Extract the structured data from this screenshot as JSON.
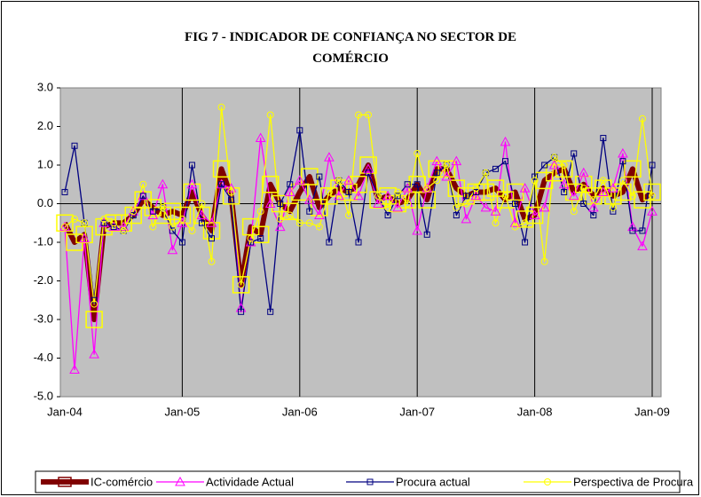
{
  "chart_data": {
    "type": "line",
    "title": "FIG 7 - INDICADOR DE CONFIANÇA NO SECTOR DE COMÉRCIO",
    "categories": [
      "Jan-04",
      null,
      null,
      null,
      null,
      null,
      null,
      null,
      null,
      null,
      null,
      null,
      "Jan-05",
      null,
      null,
      null,
      null,
      null,
      null,
      null,
      null,
      null,
      null,
      null,
      "Jan-06",
      null,
      null,
      null,
      null,
      null,
      null,
      null,
      null,
      null,
      null,
      null,
      "Jan-07",
      null,
      null,
      null,
      null,
      null,
      null,
      null,
      null,
      null,
      null,
      null,
      "Jan-08",
      null,
      null,
      null,
      null,
      null,
      null,
      null,
      null,
      null,
      null,
      null,
      "Jan-09"
    ],
    "series": [
      {
        "name": "IC-comércio",
        "color": "#800000",
        "marker": "square",
        "marker_color": "#ffff00",
        "values": [
          -0.5,
          -1.0,
          -0.8,
          -3.0,
          -0.6,
          -0.5,
          -0.5,
          -0.3,
          0.1,
          -0.1,
          -0.3,
          -0.2,
          -0.3,
          0.3,
          -0.3,
          -0.7,
          0.9,
          0.2,
          -2.1,
          -0.6,
          -0.8,
          0.5,
          0.0,
          -0.2,
          0.3,
          0.7,
          -0.1,
          0.2,
          0.4,
          0.3,
          0.5,
          1.0,
          0.1,
          0.2,
          0.0,
          0.1,
          0.5,
          0.1,
          0.9,
          0.9,
          0.4,
          0.2,
          0.3,
          0.3,
          0.4,
          0.1,
          0.3,
          -0.4,
          -0.3,
          0.6,
          0.8,
          0.9,
          0.3,
          0.5,
          0.2,
          0.4,
          0.2,
          0.3,
          0.9,
          0.1,
          0.3
        ]
      },
      {
        "name": "Actividade Actual",
        "color": "#ff00ff",
        "marker": "triangle",
        "marker_color": "#ff00ff",
        "values": [
          -0.6,
          -4.3,
          -0.9,
          -3.9,
          -0.5,
          -0.6,
          -0.6,
          -0.2,
          0.2,
          -0.3,
          0.5,
          -1.2,
          -0.5,
          0.5,
          -0.3,
          -0.5,
          0.5,
          0.4,
          -2.7,
          -1.0,
          1.7,
          0.0,
          -0.6,
          0.3,
          0.6,
          0.1,
          -0.3,
          1.2,
          0.2,
          0.6,
          0.2,
          0.9,
          0.0,
          0.2,
          -0.1,
          0.4,
          -0.7,
          0.4,
          1.1,
          0.7,
          1.1,
          -0.4,
          0.2,
          -0.1,
          -0.2,
          1.6,
          -0.5,
          0.4,
          -0.3,
          -0.1,
          1.0,
          0.5,
          0.2,
          0.8,
          -0.1,
          0.3,
          0.4,
          1.3,
          -0.6,
          -1.1,
          -0.2
        ]
      },
      {
        "name": "Procura actual",
        "color": "#000080",
        "marker": "square",
        "marker_color": "#000080",
        "values": [
          0.3,
          1.5,
          -0.5,
          -2.5,
          -0.5,
          -0.6,
          -0.7,
          -0.3,
          0.2,
          -0.2,
          -0.1,
          -0.7,
          -1.0,
          1.0,
          -0.5,
          -0.9,
          0.5,
          0.1,
          -2.8,
          -1.0,
          -0.9,
          -2.8,
          0.0,
          0.5,
          1.9,
          -0.2,
          0.7,
          -1.0,
          0.6,
          0.3,
          -1.0,
          0.8,
          0.2,
          -0.3,
          0.2,
          0.5,
          0.5,
          -0.8,
          0.8,
          1.0,
          -0.3,
          0.2,
          0.3,
          0.8,
          0.9,
          1.1,
          0.0,
          -1.0,
          0.7,
          1.0,
          1.2,
          0.3,
          1.3,
          0.0,
          -0.3,
          1.7,
          -0.2,
          1.1,
          -0.7,
          -0.7,
          1.0
        ]
      },
      {
        "name": "Perspectiva de Procura",
        "color": "#ffff00",
        "marker": "circle",
        "marker_color": "#ffff00",
        "values": [
          -0.6,
          -0.4,
          -0.5,
          -2.6,
          -0.4,
          -0.5,
          -0.7,
          -0.2,
          0.5,
          -0.6,
          -0.1,
          -0.6,
          -0.4,
          -0.7,
          0.0,
          -1.5,
          2.5,
          0.3,
          -2.1,
          -0.9,
          -0.2,
          2.3,
          -0.4,
          -0.3,
          -0.5,
          -0.5,
          -0.6,
          0.3,
          0.6,
          -0.3,
          2.3,
          2.3,
          0.2,
          -0.1,
          0.3,
          0.0,
          1.3,
          0.4,
          0.6,
          1.0,
          -0.1,
          0.0,
          0.4,
          0.8,
          -0.5,
          0.2,
          -0.6,
          -0.5,
          0.6,
          -1.5,
          1.2,
          1.0,
          -0.2,
          0.4,
          0.1,
          0.6,
          -0.1,
          0.6,
          0.2,
          2.2,
          0.2
        ]
      }
    ],
    "ylim": [
      -5,
      3
    ],
    "yticks": [
      {
        "value": -5,
        "label": "-5.0"
      },
      {
        "value": -4,
        "label": "-4.0"
      },
      {
        "value": -3,
        "label": "-3.0"
      },
      {
        "value": -2,
        "label": "-2.0"
      },
      {
        "value": -1,
        "label": "-1.0"
      },
      {
        "value": 0,
        "label": "0.0"
      },
      {
        "value": 1,
        "label": "1.0"
      },
      {
        "value": 2,
        "label": "2.0"
      },
      {
        "value": 3,
        "label": "3.0"
      }
    ],
    "plot_background": "#c0c0c0",
    "legend": "bottom"
  }
}
